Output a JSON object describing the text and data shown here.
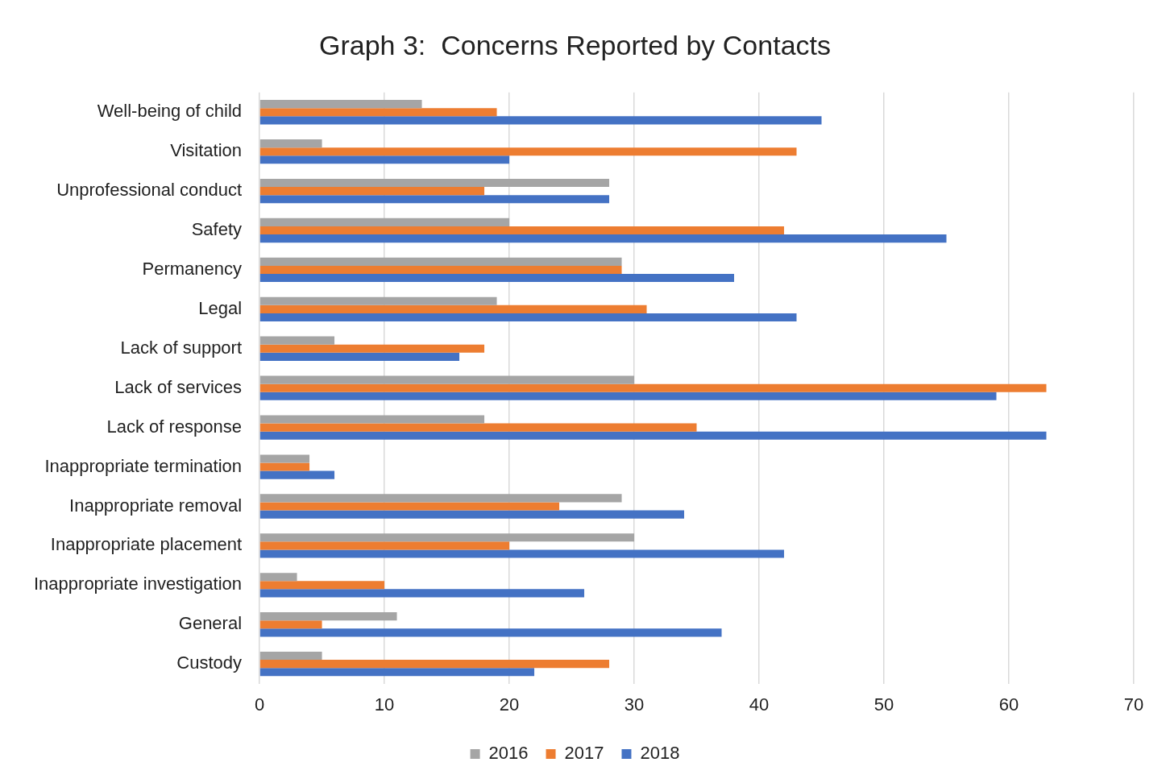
{
  "chart_data": {
    "type": "bar",
    "orientation": "horizontal",
    "title": "Graph 3:  Concerns Reported by Contacts",
    "categories": [
      "Well-being of child",
      "Visitation",
      "Unprofessional conduct",
      "Safety",
      "Permanency",
      "Legal",
      "Lack of support",
      "Lack of services",
      "Lack of response",
      "Inappropriate termination",
      "Inappropriate removal",
      "Inappropriate placement",
      "Inappropriate investigation",
      "General",
      "Custody"
    ],
    "series": [
      {
        "name": "2016",
        "color": "#a5a5a5",
        "values": [
          13,
          5,
          28,
          20,
          29,
          19,
          6,
          30,
          18,
          4,
          29,
          30,
          3,
          11,
          5
        ]
      },
      {
        "name": "2017",
        "color": "#ed7d31",
        "values": [
          19,
          43,
          18,
          42,
          29,
          31,
          18,
          63,
          35,
          4,
          24,
          20,
          10,
          5,
          28
        ]
      },
      {
        "name": "2018",
        "color": "#4472c4",
        "values": [
          45,
          20,
          28,
          55,
          38,
          43,
          16,
          59,
          63,
          6,
          34,
          42,
          26,
          37,
          22
        ]
      }
    ],
    "xlim": [
      0,
      70
    ],
    "xticks": [
      0,
      10,
      20,
      30,
      40,
      50,
      60,
      70
    ],
    "grid": "x",
    "legend": "bottom"
  }
}
